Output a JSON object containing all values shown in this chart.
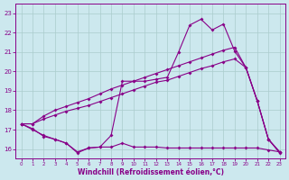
{
  "x": [
    0,
    1,
    2,
    3,
    4,
    5,
    6,
    7,
    8,
    9,
    10,
    11,
    12,
    13,
    14,
    15,
    16,
    17,
    18,
    19,
    20,
    21,
    22,
    23
  ],
  "line_temp": [
    17.3,
    17.0,
    16.7,
    16.5,
    16.3,
    15.8,
    16.05,
    16.1,
    16.7,
    19.5,
    19.5,
    19.5,
    19.6,
    19.7,
    21.0,
    22.4,
    22.7,
    22.15,
    22.45,
    21.05,
    20.2,
    18.5,
    16.5,
    15.8
  ],
  "line_mid": [
    17.3,
    17.3,
    17.55,
    17.75,
    17.95,
    18.1,
    18.25,
    18.45,
    18.65,
    18.85,
    19.05,
    19.25,
    19.45,
    19.55,
    19.75,
    19.95,
    20.15,
    20.3,
    20.5,
    20.65,
    20.2,
    18.5,
    16.5,
    15.85
  ],
  "line_top": [
    17.3,
    17.3,
    17.7,
    18.0,
    18.2,
    18.4,
    18.6,
    18.85,
    19.1,
    19.3,
    19.5,
    19.7,
    19.9,
    20.1,
    20.3,
    20.5,
    20.7,
    20.9,
    21.1,
    21.25,
    20.2,
    18.5,
    16.5,
    15.85
  ],
  "line_flat": [
    17.3,
    17.05,
    16.65,
    16.5,
    16.3,
    15.85,
    16.05,
    16.1,
    16.1,
    16.3,
    16.1,
    16.1,
    16.1,
    16.05,
    16.05,
    16.05,
    16.05,
    16.05,
    16.05,
    16.05,
    16.05,
    16.05,
    15.95,
    15.85
  ],
  "bg_color": "#cce8ee",
  "line_color": "#880088",
  "grid_color": "#aacccc",
  "xlabel": "Windchill (Refroidissement éolien,°C)",
  "xlim": [
    -0.5,
    23.5
  ],
  "ylim": [
    15.5,
    23.5
  ],
  "yticks": [
    16,
    17,
    18,
    19,
    20,
    21,
    22,
    23
  ],
  "xticks": [
    0,
    1,
    2,
    3,
    4,
    5,
    6,
    7,
    8,
    9,
    10,
    11,
    12,
    13,
    14,
    15,
    16,
    17,
    18,
    19,
    20,
    21,
    22,
    23
  ]
}
